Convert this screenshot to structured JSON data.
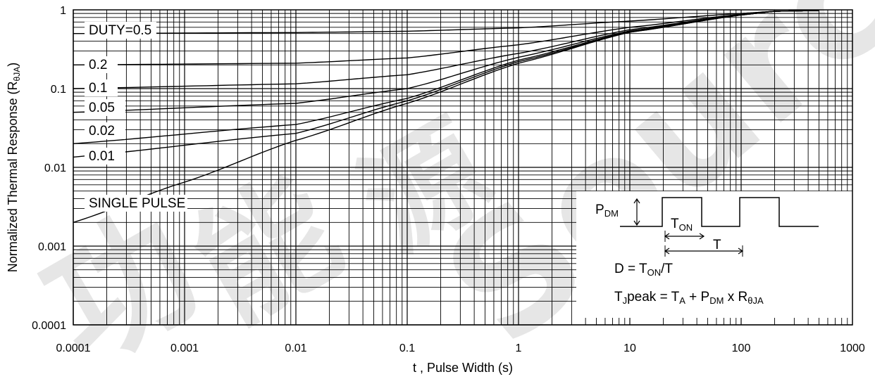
{
  "chart_data": {
    "type": "line",
    "title": "",
    "xlabel": "t , Pulse Width (s)",
    "ylabel_main": "Normalized Thermal Response (R",
    "ylabel_sub": "θJA",
    "ylabel_close": ")",
    "x_scale": "log",
    "y_scale": "log",
    "xlim": [
      0.0001,
      1000
    ],
    "ylim": [
      0.0001,
      1
    ],
    "grid": true,
    "x_ticks": [
      "0.0001",
      "0.001",
      "0.01",
      "0.1",
      "1",
      "10",
      "100",
      "1000"
    ],
    "y_ticks": [
      "0.0001",
      "0.001",
      "0.01",
      "0.1",
      "1"
    ],
    "legend_placement": "left, inline labels",
    "series": [
      {
        "name": "DUTY=0.5",
        "label_y": 0.5,
        "x": [
          0.0001,
          0.01,
          0.1,
          1,
          10,
          100,
          200,
          500
        ],
        "y": [
          0.5,
          0.515,
          0.535,
          0.59,
          0.72,
          0.9,
          0.96,
          0.98
        ]
      },
      {
        "name": "0.2",
        "label_y": 0.2,
        "x": [
          0.0001,
          0.01,
          0.1,
          1,
          10,
          100,
          200,
          500
        ],
        "y": [
          0.2,
          0.21,
          0.245,
          0.36,
          0.6,
          0.88,
          0.96,
          0.98
        ]
      },
      {
        "name": "0.1",
        "label_y": 0.1,
        "x": [
          0.0001,
          0.01,
          0.1,
          1,
          10,
          100,
          200,
          500
        ],
        "y": [
          0.1,
          0.115,
          0.15,
          0.28,
          0.56,
          0.87,
          0.96,
          0.98
        ]
      },
      {
        "name": "0.05",
        "label_y": 0.05,
        "x": [
          0.0001,
          0.01,
          0.1,
          1,
          10,
          100,
          200,
          500
        ],
        "y": [
          0.05,
          0.065,
          0.1,
          0.25,
          0.54,
          0.87,
          0.96,
          0.98
        ]
      },
      {
        "name": "0.02",
        "label_y": 0.02,
        "x": [
          0.0001,
          0.01,
          0.1,
          1,
          10,
          100,
          200,
          500
        ],
        "y": [
          0.02,
          0.035,
          0.075,
          0.23,
          0.53,
          0.86,
          0.96,
          0.98
        ]
      },
      {
        "name": "0.01",
        "label_y": 0.01,
        "x": [
          0.0001,
          0.01,
          0.1,
          1,
          10,
          100,
          200,
          500
        ],
        "y": [
          0.0135,
          0.027,
          0.07,
          0.22,
          0.52,
          0.86,
          0.96,
          0.98
        ]
      },
      {
        "name": "SINGLE PULSE",
        "label_y": 0.002,
        "x": [
          0.0001,
          0.001,
          0.01,
          0.1,
          1,
          10,
          100,
          200,
          500
        ],
        "y": [
          0.002,
          0.0065,
          0.022,
          0.065,
          0.21,
          0.52,
          0.86,
          0.96,
          0.98
        ]
      }
    ],
    "inset": {
      "pdm": "P",
      "pdm_sub": "DM",
      "ton": "T",
      "ton_sub": "ON",
      "t": "T",
      "duty_prefix": "D = T",
      "duty_sub": "ON",
      "duty_suffix": "/T",
      "tj_t": "T",
      "tj_sub": "J",
      "tj_mid": "peak = T",
      "tj_a": "A",
      "tj_plus": " + P",
      "tj_dm": "DM",
      "tj_x": " x R",
      "tj_theta": "θJA"
    },
    "watermark": [
      "功",
      "能",
      "源",
      "Source"
    ],
    "colors": {
      "line": "#000000",
      "grid": "#000000",
      "background": "#ffffff",
      "watermark": "#e6e6e6"
    }
  }
}
